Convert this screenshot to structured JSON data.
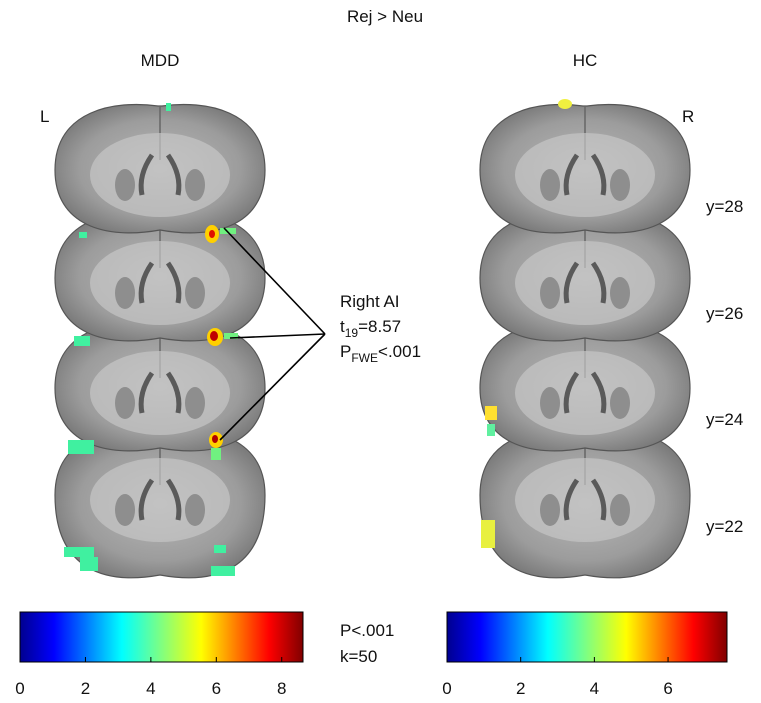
{
  "title": "Rej > Neu",
  "panels": [
    {
      "label": "MDD",
      "side": "L"
    },
    {
      "label": "HC",
      "side": "R"
    }
  ],
  "slice_labels": [
    "y=28",
    "y=26",
    "y=24",
    "y=22"
  ],
  "annotation": {
    "region": "Right AI",
    "stat": {
      "main": "t",
      "sub": "19",
      "rest": "=8.57"
    },
    "p": {
      "main": "P",
      "sub": "FWE",
      "rest": "<.001"
    }
  },
  "threshold": [
    "P<.001",
    "k=50"
  ],
  "colorbars": [
    {
      "lim": [
        0,
        8.65
      ],
      "ticks": [
        0,
        2,
        4,
        6,
        8
      ]
    },
    {
      "lim": [
        0,
        7.6
      ],
      "ticks": [
        0,
        2,
        4,
        6
      ]
    }
  ]
}
